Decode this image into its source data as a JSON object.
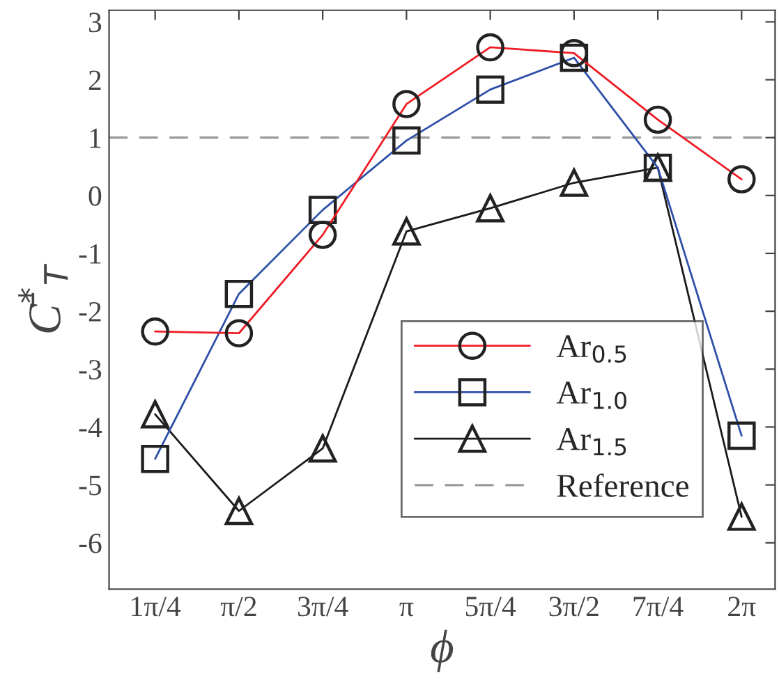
{
  "chart_data": {
    "type": "line",
    "categories": [
      "1π/4",
      "π/2",
      "3π/4",
      "π",
      "5π/4",
      "3π/2",
      "7π/4",
      "2π"
    ],
    "xlabel": "ϕ",
    "ylabel": "C̄$^{*}$$_{T}$",
    "ylim": [
      -6.8,
      3.2
    ],
    "yticks": [
      -6,
      -5,
      -4,
      -3,
      -2,
      -1,
      0,
      1,
      2,
      3
    ],
    "series": [
      {
        "name": "Ar$_{0.5}$",
        "color": "#ee1c25",
        "marker": "circle",
        "values": [
          -2.35,
          -2.38,
          -0.68,
          1.58,
          2.56,
          2.46,
          1.31,
          0.28
        ]
      },
      {
        "name": "Ar$_{1.0}$",
        "color": "#2e4fa8",
        "marker": "square",
        "values": [
          -4.55,
          -1.7,
          -0.25,
          0.95,
          1.83,
          2.38,
          0.48,
          -4.15
        ]
      },
      {
        "name": "Ar$_{1.5}$",
        "color": "#1a1a1a",
        "marker": "triangle",
        "values": [
          -3.78,
          -5.45,
          -4.37,
          -0.62,
          -0.22,
          0.22,
          0.48,
          -5.55
        ]
      }
    ],
    "ref_lines": [
      {
        "axis": "y",
        "value": 1,
        "label": "Reference",
        "color": "#999999",
        "line_style": "dashed"
      }
    ],
    "legend": "bottom right",
    "grid": false
  }
}
